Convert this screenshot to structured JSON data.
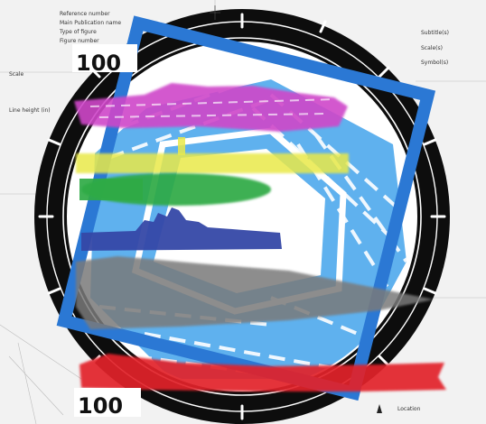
{
  "colors": {
    "paper": "#f2f2f2",
    "ring": "#0d0d0d",
    "blue_frame": "#2b78d4",
    "light_blue": "#5fb1ee",
    "magenta": "#cf47c9",
    "yellow": "#e9e94a",
    "green": "#2faa45",
    "navy": "#3548a6",
    "grey": "#7a7a7a",
    "red": "#e2232a"
  },
  "sheet_text": {
    "big_top": "100",
    "big_bottom": "100"
  },
  "note_lines": {
    "top_left": [
      "Reference number",
      "Main Publication name",
      "Type of figure",
      "Figure number"
    ],
    "left": [
      "Scale",
      "Line height (in)"
    ],
    "top_right": [
      "Subtitle(s)",
      "Scale(s)",
      "Symbol(s)"
    ],
    "bottom_right": [
      "Location"
    ]
  },
  "icons": [
    "compass-rose-icon",
    "north-arrow-icon"
  ]
}
